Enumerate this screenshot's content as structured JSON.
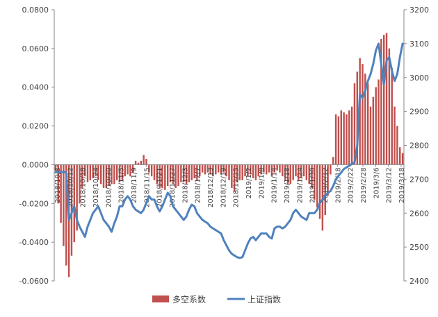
{
  "chart_data": {
    "type": "bar+line",
    "title": "",
    "legend": {
      "placement": "bottom",
      "entries": [
        "多空系数",
        "上证指数"
      ]
    },
    "colors": {
      "bars": "#c0504d",
      "line": "#4f81bd",
      "axis": "#868686",
      "text": "#404040"
    },
    "grid": false,
    "y_left": {
      "range": [
        -0.06,
        0.08
      ],
      "ticks": [
        "-0.0600",
        "-0.0400",
        "-0.0200",
        "0.0000",
        "0.0200",
        "0.0400",
        "0.0600",
        "0.0800"
      ]
    },
    "y_right": {
      "range": [
        2400,
        3200
      ],
      "ticks": [
        "2400",
        "2500",
        "2600",
        "2700",
        "2800",
        "2900",
        "3000",
        "3100",
        "3200"
      ]
    },
    "x_tick_labels": [
      "2018/10/8",
      "2018/10/12",
      "2018/10/18",
      "2018/10/24",
      "2018/10/30",
      "2018/11/5",
      "2018/11/9",
      "2018/11/15",
      "2018/11/21",
      "2018/11/27",
      "2018/12/3",
      "2018/12/7",
      "2018/12/13",
      "2018/12/19",
      "2018/12/25",
      "2019/1/2",
      "2019/1/8",
      "2019/1/14",
      "2019/1/18",
      "2019/1/24",
      "2019/1/30",
      "2019/2/12",
      "2019/2/18",
      "2019/2/22",
      "2019/2/28",
      "2019/3/6",
      "2019/3/12",
      "2019/3/18"
    ],
    "series": [
      {
        "name": "多空系数",
        "kind": "bar",
        "axis": "left",
        "values": [
          -0.003,
          -0.02,
          -0.03,
          -0.042,
          -0.052,
          -0.058,
          -0.047,
          -0.04,
          -0.034,
          -0.02,
          -0.012,
          -0.006,
          -0.009,
          -0.008,
          -0.007,
          -0.006,
          -0.008,
          -0.01,
          -0.012,
          -0.012,
          -0.011,
          -0.01,
          -0.01,
          -0.008,
          -0.009,
          -0.008,
          -0.006,
          -0.005,
          -0.006,
          -0.004,
          0.002,
          0.001,
          0.002,
          0.005,
          0.003,
          -0.004,
          -0.006,
          -0.008,
          -0.01,
          -0.012,
          -0.012,
          -0.013,
          -0.011,
          -0.009,
          -0.01,
          -0.012,
          -0.011,
          -0.009,
          -0.009,
          -0.01,
          -0.009,
          -0.008,
          -0.007,
          -0.008,
          -0.006,
          -0.004,
          -0.005,
          -0.004,
          -0.005,
          -0.006,
          -0.005,
          -0.004,
          -0.005,
          -0.004,
          -0.006,
          -0.008,
          -0.012,
          -0.014,
          -0.009,
          -0.008,
          -0.008,
          -0.006,
          -0.006,
          -0.005,
          -0.007,
          -0.008,
          -0.006,
          -0.005,
          -0.004,
          -0.005,
          -0.004,
          -0.006,
          -0.004,
          -0.003,
          -0.004,
          -0.006,
          -0.008,
          -0.01,
          -0.01,
          -0.008,
          -0.006,
          -0.008,
          -0.007,
          -0.006,
          -0.008,
          -0.01,
          -0.012,
          -0.018,
          -0.022,
          -0.028,
          -0.034,
          -0.026,
          -0.016,
          -0.005,
          0.004,
          0.026,
          0.025,
          0.028,
          0.027,
          0.026,
          0.028,
          0.03,
          0.042,
          0.048,
          0.055,
          0.052,
          0.047,
          0.042,
          0.03,
          0.035,
          0.04,
          0.044,
          0.065,
          0.067,
          0.068,
          0.06,
          0.05,
          0.03,
          0.02,
          0.009,
          0.006
        ]
      },
      {
        "name": "上证指数",
        "kind": "line",
        "axis": "right",
        "values": [
          2720,
          2722,
          2720,
          2722,
          2720,
          2580,
          2600,
          2620,
          2580,
          2560,
          2545,
          2530,
          2560,
          2580,
          2600,
          2610,
          2620,
          2600,
          2580,
          2570,
          2560,
          2545,
          2570,
          2590,
          2620,
          2620,
          2640,
          2650,
          2640,
          2620,
          2610,
          2605,
          2600,
          2610,
          2630,
          2650,
          2640,
          2640,
          2620,
          2605,
          2620,
          2640,
          2660,
          2650,
          2620,
          2610,
          2600,
          2590,
          2580,
          2590,
          2610,
          2625,
          2620,
          2600,
          2590,
          2580,
          2575,
          2570,
          2560,
          2555,
          2550,
          2545,
          2540,
          2520,
          2505,
          2490,
          2480,
          2475,
          2470,
          2468,
          2470,
          2490,
          2510,
          2525,
          2530,
          2520,
          2530,
          2540,
          2540,
          2540,
          2530,
          2525,
          2555,
          2560,
          2560,
          2555,
          2560,
          2570,
          2580,
          2600,
          2610,
          2600,
          2590,
          2585,
          2580,
          2600,
          2600,
          2600,
          2610,
          2630,
          2640,
          2650,
          2660,
          2665,
          2680,
          2700,
          2710,
          2720,
          2730,
          2735,
          2740,
          2745,
          2750,
          2800,
          2950,
          2940,
          2960,
          2990,
          3010,
          3040,
          3080,
          3100,
          3040,
          2980,
          3050,
          3060,
          3020,
          2990,
          3010,
          3060,
          3100
        ]
      }
    ]
  }
}
